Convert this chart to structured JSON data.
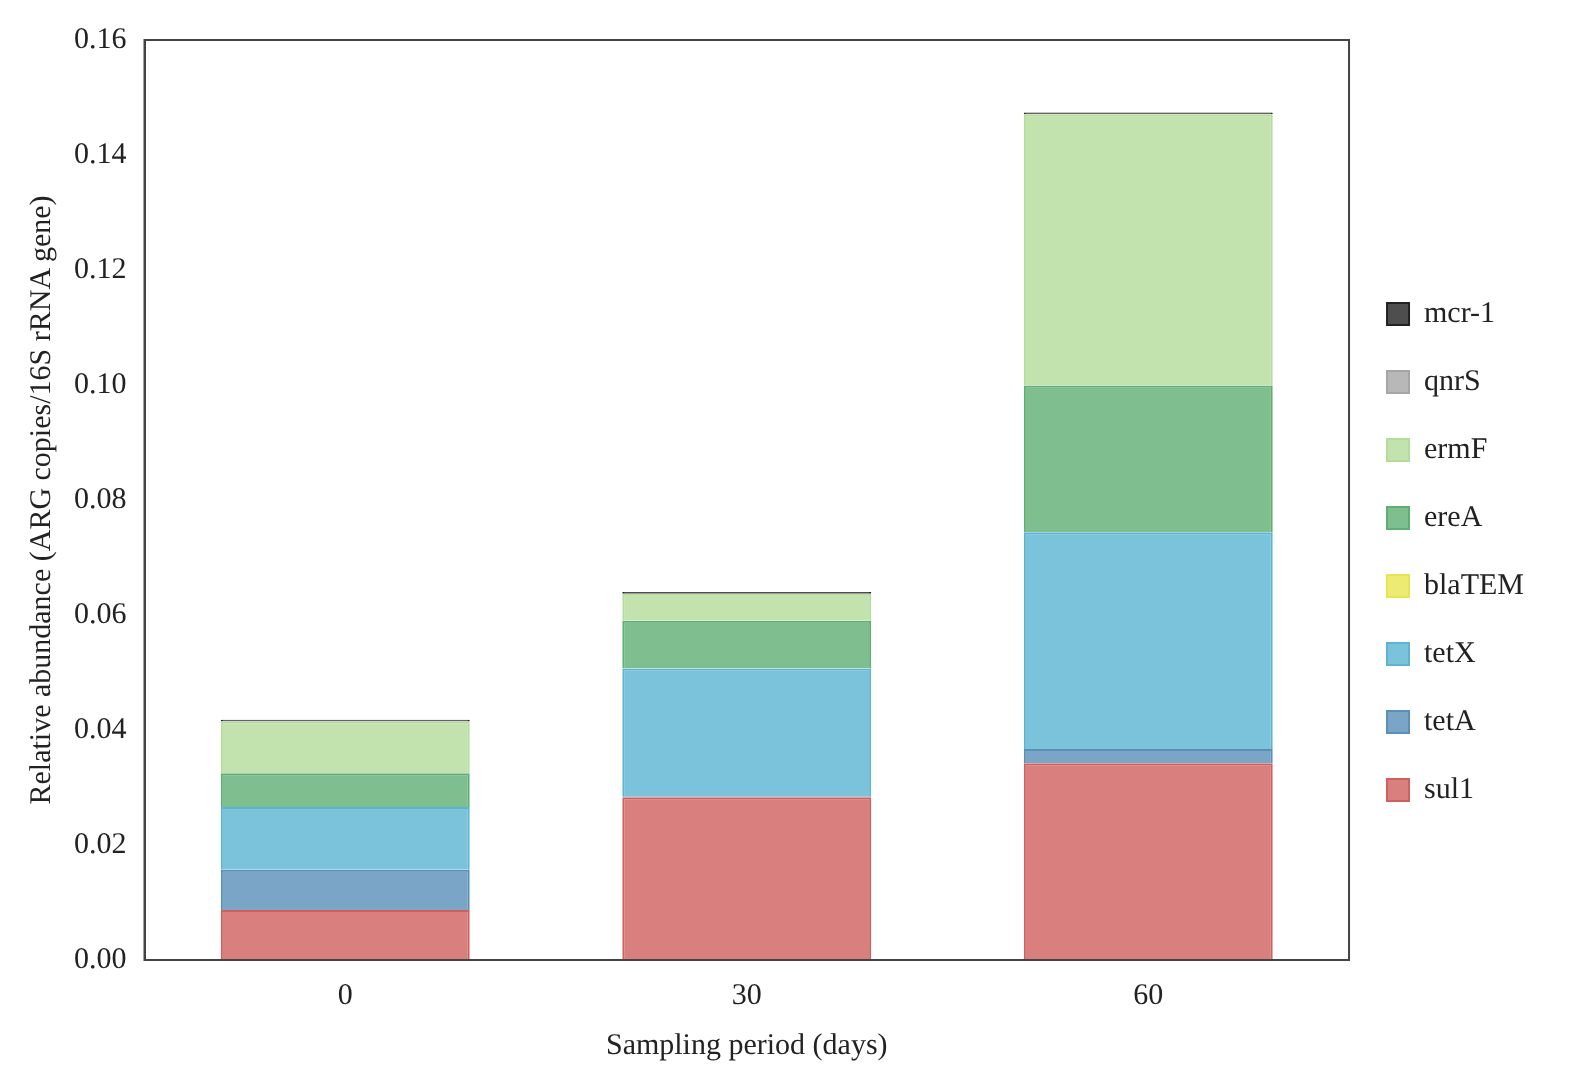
{
  "chart_data": {
    "type": "bar",
    "stacked": true,
    "xlabel": "Sampling period (days)",
    "ylabel": "Relative abundance (ARG copies/16S rRNA gene)",
    "categories": [
      "0",
      "30",
      "60"
    ],
    "ylim": [
      0,
      0.16
    ],
    "yticks": [
      {
        "value": 0,
        "label": "0.00"
      },
      {
        "value": 0.02,
        "label": "0.02"
      },
      {
        "value": 0.04,
        "label": "0.04"
      },
      {
        "value": 0.06,
        "label": "0.06"
      },
      {
        "value": 0.08,
        "label": "0.08"
      },
      {
        "value": 0.1,
        "label": "0.10"
      },
      {
        "value": 0.12,
        "label": "0.12"
      },
      {
        "value": 0.14,
        "label": "0.14"
      },
      {
        "value": 0.16,
        "label": "0.16"
      }
    ],
    "grid": false,
    "legend": "right",
    "series": [
      {
        "name": "sul1",
        "color": "#d0605e",
        "values": [
          0.0087,
          0.0283,
          0.0342
        ]
      },
      {
        "name": "tetA",
        "color": "#5a8fb8",
        "values": [
          0.007,
          0.0002,
          0.0025
        ]
      },
      {
        "name": "tetX",
        "color": "#5ab4d2",
        "values": [
          0.0109,
          0.0222,
          0.0377
        ]
      },
      {
        "name": "blaTEM",
        "color": "#e8e650",
        "values": [
          0,
          0,
          0
        ]
      },
      {
        "name": "ereA",
        "color": "#5fae73",
        "values": [
          0.0059,
          0.0083,
          0.0255
        ]
      },
      {
        "name": "ermF",
        "color": "#b4dc9a",
        "values": [
          0.009,
          0.0047,
          0.0472
        ]
      },
      {
        "name": "qnrS",
        "color": "#a6a6a6",
        "values": [
          0,
          0,
          0
        ]
      },
      {
        "name": "mcr-1",
        "color": "#222222",
        "values": [
          0.0003,
          0.0003,
          0.0003
        ]
      }
    ]
  }
}
